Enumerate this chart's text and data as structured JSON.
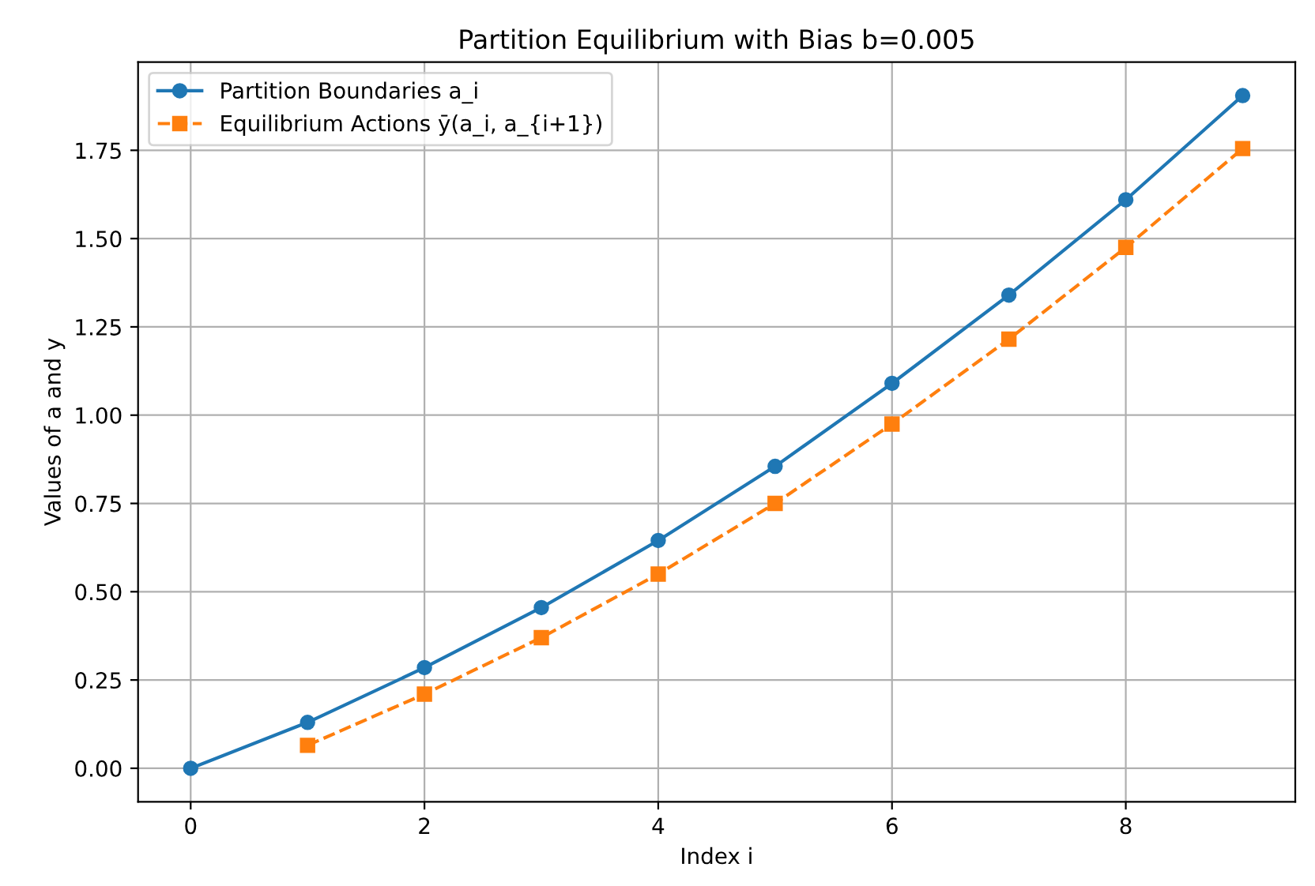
{
  "chart_data": {
    "type": "line",
    "title": "Partition Equilibrium with Bias b=0.005",
    "xlabel": "Index i",
    "ylabel": "Values of a and y",
    "xlim": [
      -0.45,
      9.45
    ],
    "xticks": [
      0,
      2,
      4,
      6,
      8
    ],
    "ylim": [
      -0.095,
      2.0
    ],
    "yticks": [
      {
        "value": 0,
        "label": "0.00"
      },
      {
        "value": 0.25,
        "label": "0.25"
      },
      {
        "value": 0.5,
        "label": "0.50"
      },
      {
        "value": 0.75,
        "label": "0.75"
      },
      {
        "value": 1,
        "label": "1.00"
      },
      {
        "value": 1.25,
        "label": "1.25"
      },
      {
        "value": 1.5,
        "label": "1.50"
      },
      {
        "value": 1.75,
        "label": "1.75"
      }
    ],
    "grid": true,
    "legend": "top left",
    "series": [
      {
        "name": "Partition Boundaries a_i",
        "color": "#1f77b4",
        "marker": "circle",
        "line_style": "solid",
        "x": [
          0,
          1,
          2,
          3,
          4,
          5,
          6,
          7,
          8,
          9
        ],
        "values": [
          0.0,
          0.13,
          0.285,
          0.455,
          0.645,
          0.855,
          1.09,
          1.34,
          1.61,
          1.905
        ]
      },
      {
        "name": "Equilibrium Actions ȳ(a_i, a_{i+1})",
        "color": "#ff7f0e",
        "marker": "square",
        "line_style": "dashed",
        "x": [
          1,
          2,
          3,
          4,
          5,
          6,
          7,
          8,
          9
        ],
        "values": [
          0.065,
          0.21,
          0.37,
          0.55,
          0.75,
          0.975,
          1.215,
          1.475,
          1.755
        ]
      }
    ]
  }
}
